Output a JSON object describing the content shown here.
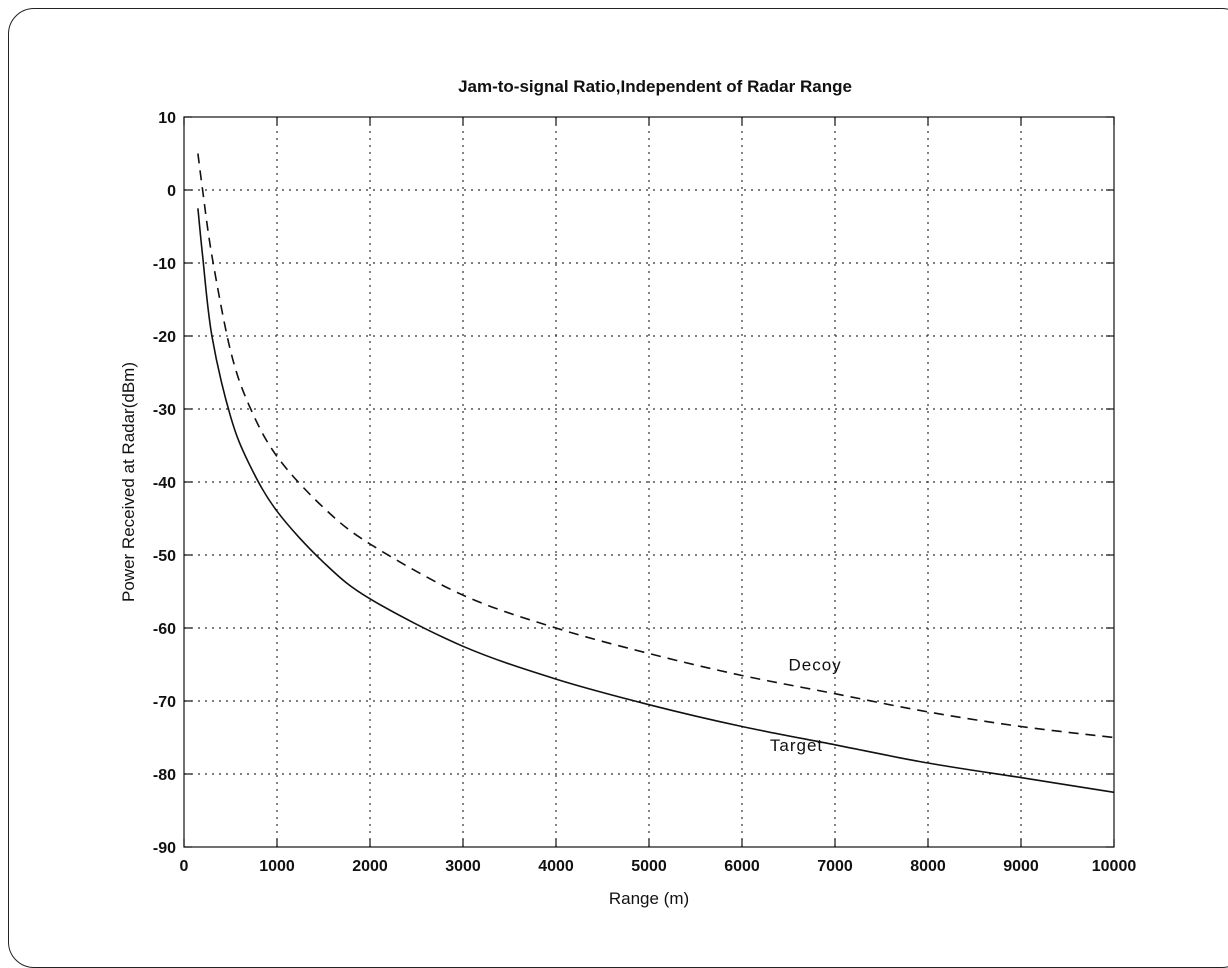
{
  "chart_data": {
    "type": "line",
    "title": "Jam-to-signal Ratio,Independent of Radar Range",
    "xlabel": "Range (m)",
    "ylabel": "Power Received at Radar(dBm)",
    "xlim": [
      0,
      10000
    ],
    "ylim": [
      -90,
      10
    ],
    "xticks": [
      "0",
      "1000",
      "2000",
      "3000",
      "4000",
      "5000",
      "6000",
      "7000",
      "8000",
      "9000",
      "10000"
    ],
    "yticks": [
      "10",
      "0",
      "-10",
      "-20",
      "-30",
      "-40",
      "-50",
      "-60",
      "-70",
      "-80",
      "-90"
    ],
    "grid": true,
    "series": [
      {
        "name": "Decoy",
        "style": "dashed",
        "x": [
          150,
          200,
          300,
          500,
          700,
          1000,
          1500,
          2000,
          3000,
          4000,
          5000,
          6000,
          7000,
          8000,
          9000,
          10000
        ],
        "y": [
          5,
          0,
          -9,
          -22,
          -29.5,
          -36.5,
          -43.5,
          -48.5,
          -55.5,
          -60,
          -63.5,
          -66.5,
          -69,
          -71.5,
          -73.5,
          -75
        ]
      },
      {
        "name": "Target",
        "style": "solid",
        "x": [
          150,
          200,
          300,
          500,
          700,
          1000,
          1500,
          2000,
          3000,
          4000,
          5000,
          6000,
          7000,
          8000,
          9000,
          10000
        ],
        "y": [
          -2.5,
          -9,
          -20,
          -31,
          -37.5,
          -44,
          -51,
          -56,
          -62.5,
          -67,
          -70.5,
          -73.5,
          -76,
          -78.5,
          -80.5,
          -82.5
        ]
      }
    ],
    "annotations": [
      {
        "text": "Decoy",
        "x": 6500,
        "y": -65
      },
      {
        "text": "Target",
        "x": 6300,
        "y": -76
      }
    ]
  }
}
